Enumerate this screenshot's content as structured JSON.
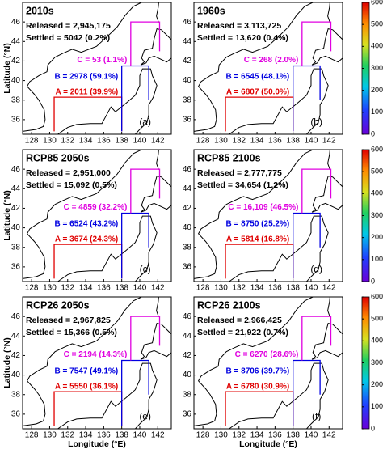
{
  "axes": {
    "x_label": "Longitude (°E)",
    "y_label": "Latitude (°N)"
  },
  "map": {
    "xlim": [
      127,
      143.5
    ],
    "ylim": [
      34.5,
      48
    ],
    "xticks": [
      128,
      130,
      132,
      134,
      136,
      138,
      140,
      142
    ],
    "yticks": [
      36,
      38,
      40,
      42,
      44,
      46
    ]
  },
  "colorbar": {
    "lim": [
      0,
      600
    ],
    "ticks": [
      0,
      100,
      200,
      300,
      400,
      500,
      600
    ]
  },
  "panels": [
    {
      "title": "2010s",
      "released": "Released = 2,945,175",
      "settled": "Settled = 5042 (0.2%)",
      "region_c": "C = 53 (1.1%)",
      "region_b": "B = 2978 (59.1%)",
      "region_a": "A = 2011 (39.9%)",
      "label": "(a)"
    },
    {
      "title": "1960s",
      "released": "Released = 3,113,725",
      "settled": "Settled = 13,620 (0.4%)",
      "region_c": "C = 268 (2.0%)",
      "region_b": "B = 6545 (48.1%)",
      "region_a": "A = 6807 (50.0%)",
      "label": "(b)"
    },
    {
      "title": "RCP85 2050s",
      "released": "Released = 2,951,000",
      "settled": "Settled = 15,092 (0.5%)",
      "region_c": "C = 4859 (32.2%)",
      "region_b": "B = 6524 (43.2%)",
      "region_a": "A = 3674 (24.3%)",
      "label": "(c)"
    },
    {
      "title": "RCP85 2100s",
      "released": "Released = 2,777,775",
      "settled": "Settled = 34,654 (1.2%)",
      "region_c": "C = 16,109 (46.5%)",
      "region_b": "B = 8750 (25.2%)",
      "region_a": "A = 5814 (16.8%)",
      "label": "(d)"
    },
    {
      "title": "RCP26 2050s",
      "released": "Released = 2,967,825",
      "settled": "Settled = 15,366 (0.5%)",
      "region_c": "C = 2194 (14.3%)",
      "region_b": "B = 7547 (49.1%)",
      "region_a": "A = 5550 (36.1%)",
      "label": "(e)"
    },
    {
      "title": "RCP26 2100s",
      "released": "Released = 2,966,425",
      "settled": "Settled = 21,922 (0.7%)",
      "region_c": "C = 6270 (28.6%)",
      "region_b": "B = 8706 (39.7%)",
      "region_a": "A = 6780 (30.9%)",
      "label": "(f)"
    }
  ]
}
